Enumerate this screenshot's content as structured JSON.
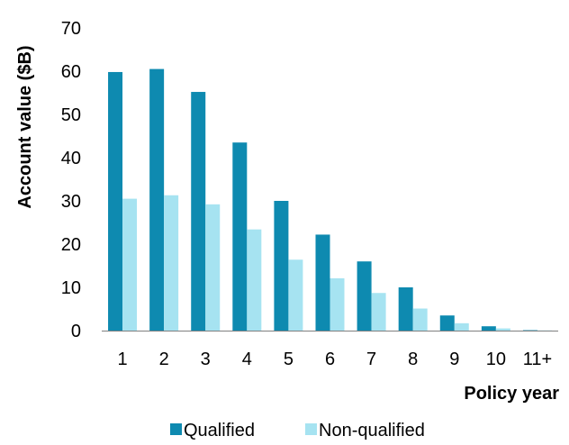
{
  "chart_data": {
    "type": "bar",
    "title": "",
    "xlabel": "Policy year",
    "ylabel": "Account value ($B)",
    "categories": [
      "1",
      "2",
      "3",
      "4",
      "5",
      "6",
      "7",
      "8",
      "9",
      "10",
      "11+"
    ],
    "series": [
      {
        "name": "Qualified",
        "color": "#0E8AB0",
        "values": [
          59.8,
          60.5,
          55.2,
          43.5,
          30,
          22.2,
          16,
          10,
          3.5,
          1,
          0.1
        ]
      },
      {
        "name": "Non-qualified",
        "color": "#A6E3F1",
        "values": [
          30.5,
          31.3,
          29.2,
          23.4,
          16.4,
          12.1,
          8.7,
          5.1,
          1.7,
          0.5,
          0.05
        ]
      }
    ],
    "ylim": [
      0,
      70
    ],
    "yticks": [
      "0",
      "10",
      "20",
      "30",
      "40",
      "50",
      "60",
      "70"
    ],
    "grid": false,
    "legend_position": "bottom"
  }
}
